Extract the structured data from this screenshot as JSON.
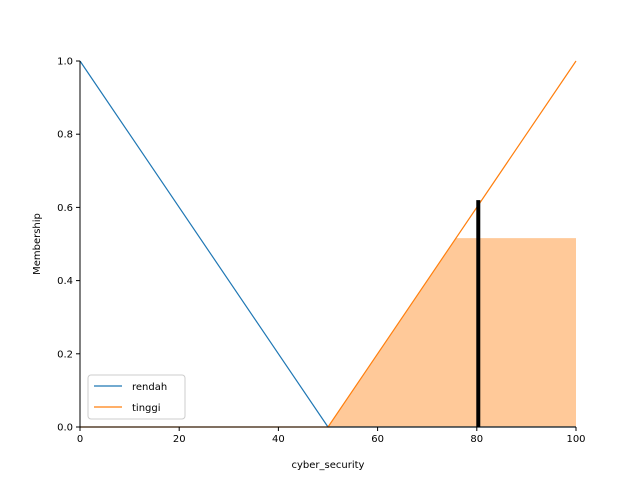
{
  "chart_data": {
    "type": "line",
    "title": "",
    "xlabel": "cyber_security",
    "ylabel": "Membership",
    "xlim": [
      0,
      100
    ],
    "ylim": [
      0,
      1.0
    ],
    "x_ticks": [
      0,
      20,
      40,
      60,
      80,
      100
    ],
    "y_ticks": [
      0.0,
      0.2,
      0.4,
      0.6,
      0.8,
      1.0
    ],
    "x_tick_labels": [
      "0",
      "20",
      "40",
      "60",
      "80",
      "100"
    ],
    "y_tick_labels": [
      "0.0",
      "0.2",
      "0.4",
      "0.6",
      "0.8",
      "1.0"
    ],
    "grid": false,
    "legend_position": "lower-left",
    "series": [
      {
        "name": "rendah",
        "color": "#1f77b4",
        "x": [
          0,
          50,
          100
        ],
        "y": [
          1.0,
          0.0,
          0.0
        ]
      },
      {
        "name": "tinggi",
        "color": "#ff7f0e",
        "x": [
          0,
          50,
          100
        ],
        "y": [
          0.0,
          0.0,
          1.0
        ]
      }
    ],
    "activation": {
      "fill_color": "#ffc999",
      "x": [
        50,
        75.8,
        100,
        100
      ],
      "y": [
        0.0,
        0.516,
        0.516,
        0.0
      ]
    },
    "output_marker": {
      "color": "#000000",
      "x": 80.3,
      "y_top": 0.62
    }
  }
}
